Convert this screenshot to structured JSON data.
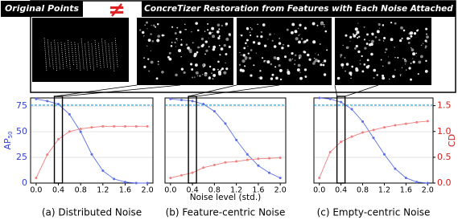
{
  "header": {
    "left_label": "Original Points",
    "right_label": "ConcreTizer Restoration from Features with Each Noise Attached"
  },
  "chart_data": [
    {
      "type": "line",
      "caption": "(a) Distributed Noise",
      "ylabel": "AP",
      "ylabel_sub": "50",
      "x": [
        0,
        0.2,
        0.4,
        0.6,
        0.8,
        1.0,
        1.2,
        1.4,
        1.6,
        1.8,
        2.0
      ],
      "xlim": [
        -0.1,
        2.1
      ],
      "xticks": [
        {
          "value": 0,
          "label": "0.0"
        },
        {
          "value": 0.4,
          "label": "0.4"
        },
        {
          "value": 0.8,
          "label": "0.8"
        },
        {
          "value": 1.2,
          "label": "1.2"
        },
        {
          "value": 1.6,
          "label": "1.6"
        },
        {
          "value": 2.0,
          "label": "2.0"
        }
      ],
      "ylim": [
        0,
        83
      ],
      "yticks": [
        0,
        25,
        50,
        75
      ],
      "ytick_labels": true,
      "y2lim": [
        0,
        1.65
      ],
      "grid": true,
      "reference_line": 76,
      "highlight_x": 0.4,
      "series": [
        {
          "color": "#5a6ee6",
          "values": [
            82,
            80,
            77,
            67,
            50,
            28,
            12,
            4,
            1,
            0,
            0
          ]
        },
        {
          "color": "#f07f7f",
          "axis": "y2",
          "values": [
            0.1,
            0.55,
            0.85,
            1.0,
            1.05,
            1.08,
            1.1,
            1.1,
            1.1,
            1.1,
            1.1
          ]
        }
      ]
    },
    {
      "type": "line",
      "caption": "(b) Feature-centric Noise",
      "xlabel": "Noise level (std.)",
      "x": [
        0,
        0.2,
        0.4,
        0.6,
        0.8,
        1.0,
        1.2,
        1.4,
        1.6,
        1.8,
        2.0
      ],
      "xlim": [
        -0.1,
        2.1
      ],
      "xticks": [
        {
          "value": 0,
          "label": "0.0"
        },
        {
          "value": 0.4,
          "label": "0.4"
        },
        {
          "value": 0.8,
          "label": "0.8"
        },
        {
          "value": 1.2,
          "label": "1.2"
        },
        {
          "value": 1.6,
          "label": "1.6"
        },
        {
          "value": 2.0,
          "label": "2.0"
        }
      ],
      "ylim": [
        0,
        83
      ],
      "yticks": [
        0,
        25,
        50,
        75
      ],
      "ytick_labels": false,
      "y2lim": [
        0,
        1.65
      ],
      "grid": true,
      "reference_line": 76,
      "highlight_x": 0.4,
      "series": [
        {
          "color": "#5a6ee6",
          "values": [
            82,
            81,
            80,
            77,
            70,
            58,
            42,
            28,
            17,
            10,
            5
          ]
        },
        {
          "color": "#f07f7f",
          "axis": "y2",
          "values": [
            0.1,
            0.15,
            0.2,
            0.3,
            0.35,
            0.4,
            0.42,
            0.45,
            0.47,
            0.48,
            0.49
          ]
        }
      ]
    },
    {
      "type": "line",
      "caption": "(c) Empty-centric Noise",
      "y2label": "CD",
      "x": [
        0,
        0.2,
        0.4,
        0.6,
        0.8,
        1.0,
        1.2,
        1.4,
        1.6,
        1.8,
        2.0
      ],
      "xlim": [
        -0.1,
        2.1
      ],
      "xticks": [
        {
          "value": 0,
          "label": "0.0"
        },
        {
          "value": 0.4,
          "label": "0.4"
        },
        {
          "value": 0.8,
          "label": "0.8"
        },
        {
          "value": 1.2,
          "label": "1.2"
        },
        {
          "value": 1.6,
          "label": "1.6"
        },
        {
          "value": 2.0,
          "label": "2.0"
        }
      ],
      "ylim": [
        0,
        83
      ],
      "yticks": [
        0,
        25,
        50,
        75
      ],
      "ytick_labels": false,
      "y2lim": [
        0,
        1.65
      ],
      "y2ticks": [
        {
          "value": 0,
          "label": "0.0"
        },
        {
          "value": 0.5,
          "label": "0.5"
        },
        {
          "value": 1.0,
          "label": "1.0"
        },
        {
          "value": 1.5,
          "label": "1.5"
        }
      ],
      "grid": true,
      "reference_line": 76,
      "highlight_x": 0.4,
      "series": [
        {
          "color": "#5a6ee6",
          "values": [
            83,
            82,
            79,
            72,
            60,
            44,
            28,
            14,
            5,
            1,
            0
          ]
        },
        {
          "color": "#f07f7f",
          "axis": "y2",
          "values": [
            0.1,
            0.6,
            0.8,
            0.9,
            0.98,
            1.03,
            1.08,
            1.12,
            1.15,
            1.18,
            1.2
          ]
        }
      ]
    }
  ]
}
